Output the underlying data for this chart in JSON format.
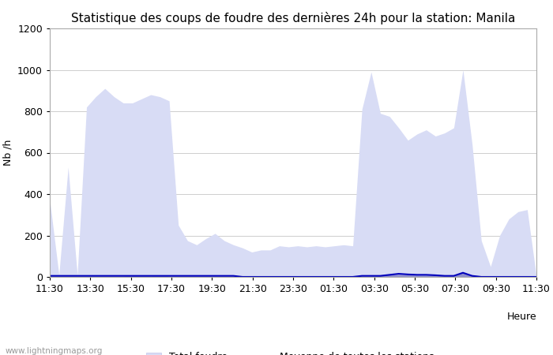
{
  "title": "Statistique des coups de foudre des dernières 24h pour la station: Manila",
  "xlabel": "Heure",
  "ylabel": "Nb /h",
  "ylim": [
    0,
    1200
  ],
  "yticks": [
    0,
    200,
    400,
    600,
    800,
    1000,
    1200
  ],
  "x_labels": [
    "11:30",
    "13:30",
    "15:30",
    "17:30",
    "19:30",
    "21:30",
    "23:30",
    "01:30",
    "03:30",
    "05:30",
    "07:30",
    "09:30",
    "11:30"
  ],
  "watermark": "www.lightningmaps.org",
  "total_foudre_color": "#d8dcf5",
  "total_foudre_edge": "#c0c4e8",
  "manila_color": "#9090cc",
  "manila_edge": "#8080bb",
  "moyenne_color": "#0000bb",
  "background_color": "#ffffff",
  "grid_color": "#bbbbbb",
  "title_fontsize": 11,
  "tick_fontsize": 9,
  "legend_fontsize": 9,
  "total_foudre": [
    370,
    10,
    530,
    10,
    820,
    870,
    910,
    870,
    840,
    840,
    860,
    880,
    870,
    850,
    250,
    175,
    155,
    185,
    210,
    175,
    155,
    140,
    120,
    130,
    130,
    150,
    145,
    150,
    145,
    150,
    145,
    150,
    155,
    150,
    810,
    990,
    790,
    775,
    720,
    660,
    690,
    710,
    680,
    695,
    720,
    1000,
    640,
    175,
    50,
    200,
    280,
    315,
    325,
    0
  ],
  "manila_foudre": [
    5,
    5,
    5,
    5,
    5,
    5,
    5,
    5,
    5,
    8,
    8,
    5,
    8,
    5,
    5,
    5,
    5,
    5,
    5,
    5,
    5,
    5,
    5,
    5,
    5,
    5,
    5,
    5,
    5,
    5,
    5,
    5,
    5,
    5,
    5,
    5,
    8,
    10,
    12,
    10,
    8,
    8,
    8,
    5,
    5,
    20,
    8,
    5,
    5,
    5,
    5,
    5,
    5,
    0
  ],
  "moyenne": [
    5,
    5,
    5,
    5,
    5,
    5,
    5,
    5,
    5,
    5,
    5,
    5,
    5,
    5,
    5,
    5,
    5,
    5,
    5,
    5,
    5,
    0,
    0,
    0,
    0,
    0,
    0,
    0,
    0,
    0,
    0,
    0,
    0,
    0,
    5,
    5,
    5,
    10,
    15,
    12,
    10,
    10,
    8,
    5,
    5,
    20,
    5,
    0,
    0,
    0,
    0,
    0,
    0,
    0
  ]
}
